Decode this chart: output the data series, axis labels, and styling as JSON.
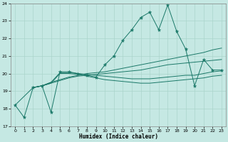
{
  "xlabel": "Humidex (Indice chaleur)",
  "xlim": [
    -0.5,
    23.5
  ],
  "ylim": [
    17,
    24
  ],
  "xticks": [
    0,
    1,
    2,
    3,
    4,
    5,
    6,
    7,
    8,
    9,
    10,
    11,
    12,
    13,
    14,
    15,
    16,
    17,
    18,
    19,
    20,
    21,
    22,
    23
  ],
  "yticks": [
    17,
    18,
    19,
    20,
    21,
    22,
    23,
    24
  ],
  "bg_color": "#c5e8e3",
  "grid_color": "#aad4cc",
  "line_color": "#1a7868",
  "series": [
    {
      "x": [
        0,
        1,
        2,
        3,
        4,
        5,
        6,
        7,
        8,
        9,
        10,
        11,
        12,
        13,
        14,
        15,
        16,
        17,
        18,
        19,
        20,
        21,
        22,
        23
      ],
      "y": [
        18.2,
        17.5,
        19.2,
        19.3,
        17.8,
        20.1,
        20.1,
        20.0,
        19.9,
        19.8,
        20.5,
        21.0,
        21.9,
        22.5,
        23.2,
        23.5,
        22.5,
        23.9,
        22.4,
        21.4,
        19.3,
        20.8,
        20.2,
        20.2
      ],
      "marker": "*",
      "markersize": 3.5
    },
    {
      "x": [
        0,
        2,
        3,
        4,
        5,
        6,
        7,
        8,
        9,
        10,
        11,
        12,
        13,
        14,
        15,
        16,
        17,
        18,
        19,
        20,
        21,
        22,
        23
      ],
      "y": [
        18.2,
        19.2,
        19.3,
        19.45,
        19.6,
        19.75,
        19.85,
        19.9,
        19.95,
        20.0,
        20.05,
        20.1,
        20.15,
        20.2,
        20.3,
        20.4,
        20.5,
        20.55,
        20.6,
        20.65,
        20.7,
        20.75,
        20.8
      ],
      "marker": null
    },
    {
      "x": [
        2,
        3,
        4,
        5,
        6,
        7,
        8,
        9,
        10,
        11,
        12,
        13,
        14,
        15,
        16,
        17,
        18,
        19,
        20,
        21,
        22,
        23
      ],
      "y": [
        19.2,
        19.3,
        19.5,
        19.65,
        19.8,
        19.9,
        20.0,
        20.05,
        20.1,
        20.2,
        20.3,
        20.4,
        20.5,
        20.6,
        20.7,
        20.8,
        20.9,
        21.0,
        21.1,
        21.2,
        21.35,
        21.45
      ],
      "marker": null
    },
    {
      "x": [
        2,
        3,
        4,
        5,
        6,
        7,
        8,
        9,
        10,
        11,
        12,
        13,
        14,
        15,
        16,
        17,
        18,
        19,
        20,
        21,
        22,
        23
      ],
      "y": [
        19.2,
        19.3,
        19.5,
        20.05,
        20.05,
        20.0,
        19.95,
        19.9,
        19.85,
        19.8,
        19.75,
        19.7,
        19.7,
        19.7,
        19.75,
        19.8,
        19.85,
        19.9,
        19.9,
        20.0,
        20.1,
        20.15
      ],
      "marker": null
    },
    {
      "x": [
        2,
        3,
        4,
        5,
        6,
        7,
        8,
        9,
        10,
        11,
        12,
        13,
        14,
        15,
        16,
        17,
        18,
        19,
        20,
        21,
        22,
        23
      ],
      "y": [
        19.2,
        19.3,
        19.45,
        20.0,
        20.0,
        19.95,
        19.85,
        19.75,
        19.65,
        19.6,
        19.55,
        19.5,
        19.45,
        19.45,
        19.5,
        19.55,
        19.6,
        19.65,
        19.7,
        19.75,
        19.85,
        19.9
      ],
      "marker": null
    }
  ]
}
